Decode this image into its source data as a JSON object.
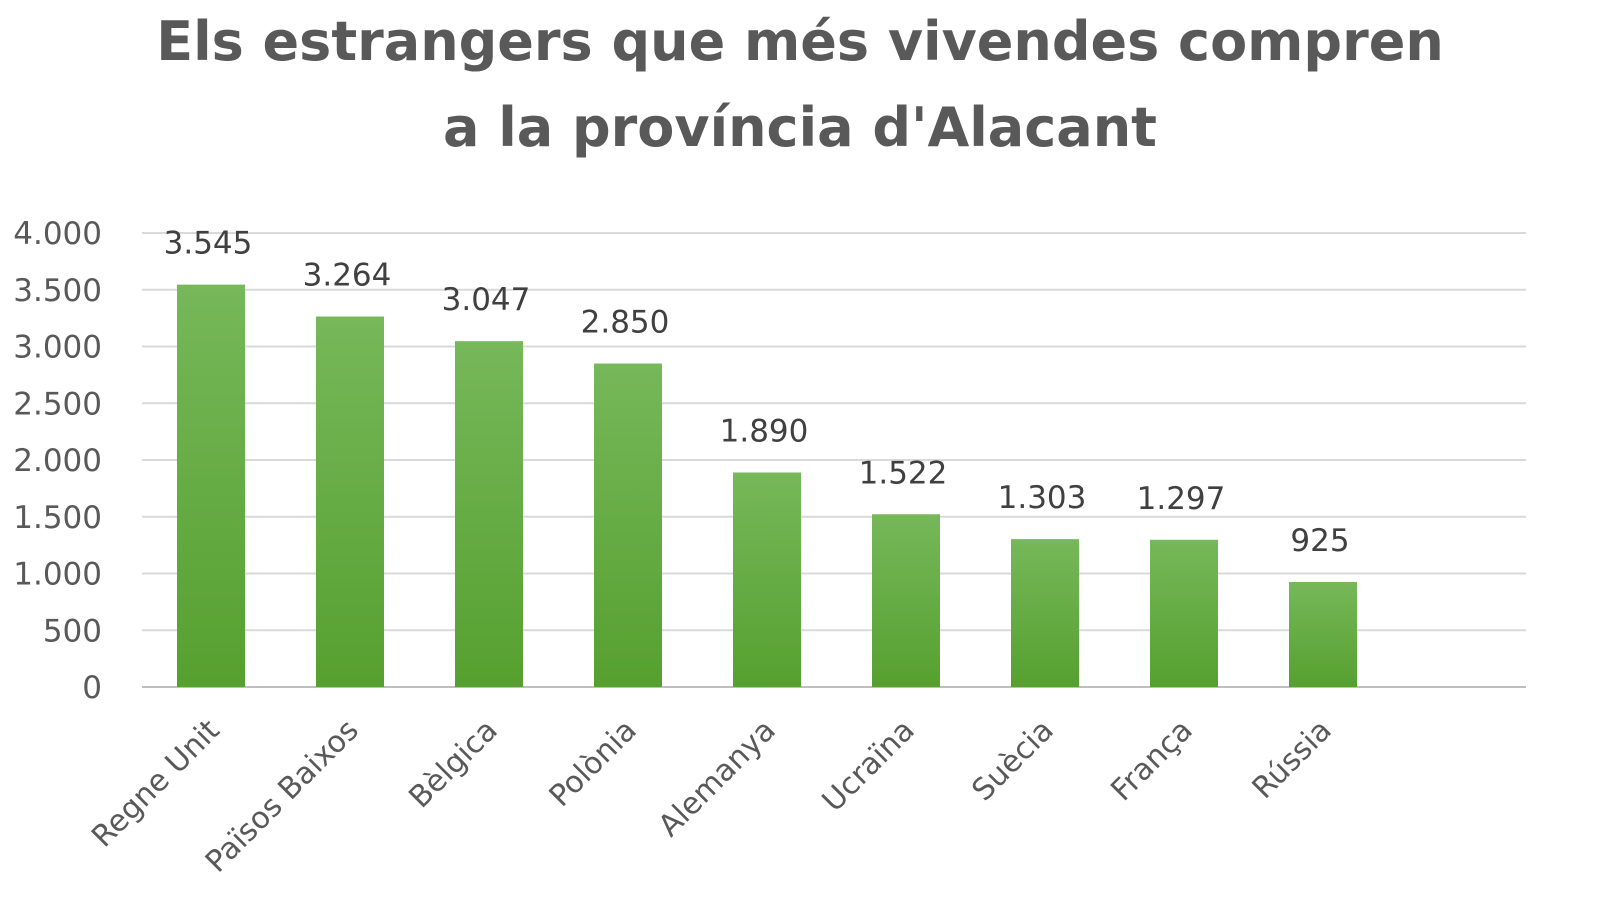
{
  "chart_data": {
    "type": "bar",
    "title_lines": [
      "Els estrangers que més vivendes compren",
      "a la província d'Alacant"
    ],
    "categories": [
      "Regne Unit",
      "Països Baixos",
      "Bèlgica",
      "Polònia",
      "Alemanya",
      "Ucraïna",
      "Suècia",
      "França",
      "Rússia"
    ],
    "values": [
      3545,
      3264,
      3047,
      2850,
      1890,
      1522,
      1303,
      1297,
      925
    ],
    "value_labels": [
      "3.545",
      "3.264",
      "3.047",
      "2.850",
      "1.890",
      "1.522",
      "1.303",
      "1.297",
      "925"
    ],
    "y_ticks": [
      0,
      500,
      1000,
      1500,
      2000,
      2500,
      3000,
      3500,
      4000
    ],
    "y_tick_labels": [
      "0",
      "500",
      "1.000",
      "1.500",
      "2.000",
      "2.500",
      "3.000",
      "3.500",
      "4.000"
    ],
    "ylim": [
      0,
      4000
    ],
    "grid": true,
    "legend": "none",
    "bar_color_top": "#76b85a",
    "bar_color_bottom": "#56a02f"
  }
}
